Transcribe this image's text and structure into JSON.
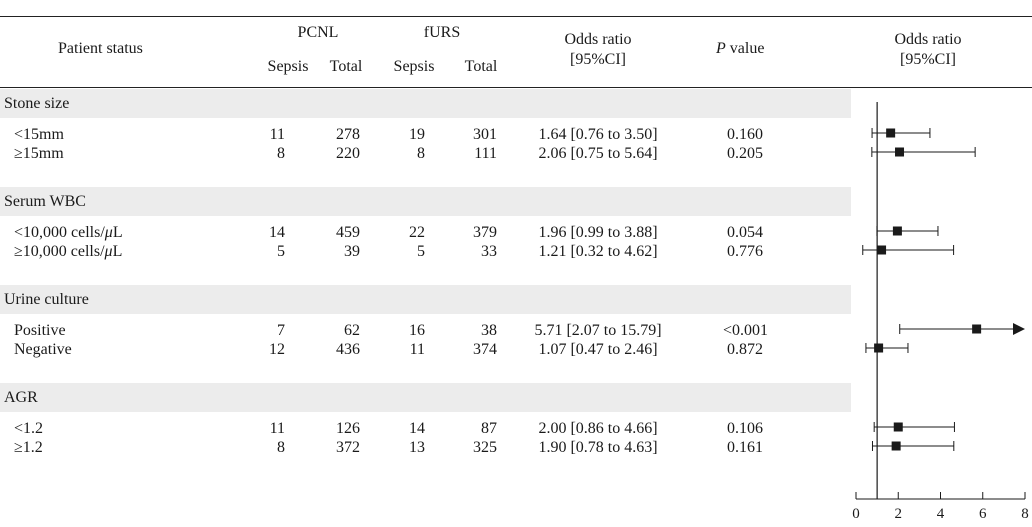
{
  "header": {
    "patient_status": "Patient status",
    "pcnl": "PCNL",
    "furs": "fURS",
    "sepsis": "Sepsis",
    "total": "Total",
    "odds_ratio": "Odds ratio",
    "ci": "[95%CI]",
    "p_value_italic": "P",
    "p_value_rest": " value",
    "plot_title": "Odds ratio",
    "plot_ci": "[95%CI]"
  },
  "groups": [
    {
      "name": "Stone size",
      "rows": [
        {
          "label": "<15mm",
          "pcnl_sepsis": "11",
          "pcnl_total": "278",
          "furs_sepsis": "19",
          "furs_total": "301",
          "or_text": "1.64 [0.76 to 3.50]",
          "p": "0.160"
        },
        {
          "label": "≥15mm",
          "pcnl_sepsis": "8",
          "pcnl_total": "220",
          "furs_sepsis": "8",
          "furs_total": "111",
          "or_text": "2.06 [0.75 to 5.64]",
          "p": "0.205"
        }
      ]
    },
    {
      "name": "Serum WBC",
      "rows": [
        {
          "label_pre": "<10,000 cells/",
          "label_mu": "μ",
          "label_post": "L",
          "pcnl_sepsis": "14",
          "pcnl_total": "459",
          "furs_sepsis": "22",
          "furs_total": "379",
          "or_text": "1.96 [0.99 to 3.88]",
          "p": "0.054"
        },
        {
          "label_pre": "≥10,000 cells/",
          "label_mu": "μ",
          "label_post": "L",
          "pcnl_sepsis": "5",
          "pcnl_total": "39",
          "furs_sepsis": "5",
          "furs_total": "33",
          "or_text": "1.21 [0.32 to 4.62]",
          "p": "0.776"
        }
      ]
    },
    {
      "name": "Urine culture",
      "rows": [
        {
          "label": "Positive",
          "pcnl_sepsis": "7",
          "pcnl_total": "62",
          "furs_sepsis": "16",
          "furs_total": "38",
          "or_text": "5.71 [2.07 to 15.79]",
          "p": "<0.001"
        },
        {
          "label": "Negative",
          "pcnl_sepsis": "12",
          "pcnl_total": "436",
          "furs_sepsis": "11",
          "furs_total": "374",
          "or_text": "1.07 [0.47 to 2.46]",
          "p": "0.872"
        }
      ]
    },
    {
      "name": "AGR",
      "rows": [
        {
          "label": "<1.2",
          "pcnl_sepsis": "11",
          "pcnl_total": "126",
          "furs_sepsis": "14",
          "furs_total": "87",
          "or_text": "2.00 [0.86 to 4.66]",
          "p": "0.106"
        },
        {
          "label": "≥1.2",
          "pcnl_sepsis": "8",
          "pcnl_total": "372",
          "furs_sepsis": "13",
          "furs_total": "325",
          "or_text": "1.90 [0.78 to 4.63]",
          "p": "0.161"
        }
      ]
    }
  ],
  "chart_data": {
    "type": "forest",
    "reference_line": 1,
    "xlim": [
      0,
      8
    ],
    "ticks": [
      0,
      2,
      4,
      6,
      8
    ],
    "points": [
      {
        "or": 1.64,
        "lo": 0.76,
        "hi": 3.5
      },
      {
        "or": 2.06,
        "lo": 0.75,
        "hi": 5.64
      },
      {
        "or": 1.96,
        "lo": 0.99,
        "hi": 3.88
      },
      {
        "or": 1.21,
        "lo": 0.32,
        "hi": 4.62
      },
      {
        "or": 5.71,
        "lo": 2.07,
        "hi": 15.79,
        "arrow": true
      },
      {
        "or": 1.07,
        "lo": 0.47,
        "hi": 2.46
      },
      {
        "or": 2.0,
        "lo": 0.86,
        "hi": 4.66
      },
      {
        "or": 1.9,
        "lo": 0.78,
        "hi": 4.63
      }
    ]
  }
}
